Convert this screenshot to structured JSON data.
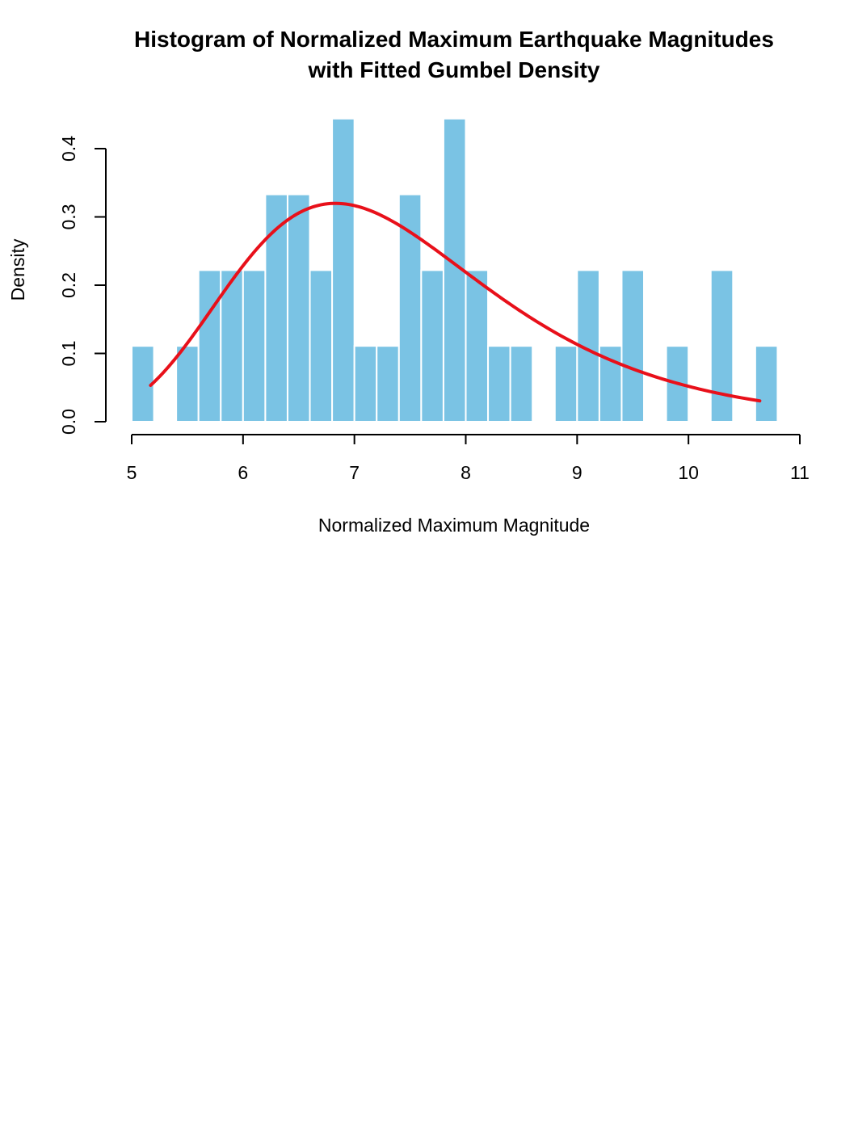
{
  "chart_data": {
    "type": "bar",
    "title_lines": [
      "Histogram of Normalized Maximum Earthquake Magnitudes",
      "with Fitted Gumbel Density"
    ],
    "xlabel": "Normalized Maximum Magnitude",
    "ylabel": "Density",
    "xlim": [
      5,
      11
    ],
    "ylim": [
      0,
      0.4
    ],
    "x_ticks": [
      "5",
      "6",
      "7",
      "8",
      "9",
      "10",
      "11"
    ],
    "x_tick_values": [
      5,
      6,
      7,
      8,
      9,
      10,
      11
    ],
    "y_ticks": [
      "0.0",
      "0.1",
      "0.2",
      "0.3",
      "0.4"
    ],
    "y_tick_values": [
      0,
      0.1,
      0.2,
      0.3,
      0.4
    ],
    "bin_width": 0.2,
    "bins": [
      {
        "x0": 5.0,
        "x1": 5.2,
        "density": 0.111
      },
      {
        "x0": 5.4,
        "x1": 5.6,
        "density": 0.111
      },
      {
        "x0": 5.6,
        "x1": 5.8,
        "density": 0.222
      },
      {
        "x0": 5.8,
        "x1": 6.0,
        "density": 0.222
      },
      {
        "x0": 6.0,
        "x1": 6.2,
        "density": 0.222
      },
      {
        "x0": 6.2,
        "x1": 6.4,
        "density": 0.333
      },
      {
        "x0": 6.4,
        "x1": 6.6,
        "density": 0.333
      },
      {
        "x0": 6.6,
        "x1": 6.8,
        "density": 0.222
      },
      {
        "x0": 6.8,
        "x1": 7.0,
        "density": 0.444
      },
      {
        "x0": 7.0,
        "x1": 7.2,
        "density": 0.111
      },
      {
        "x0": 7.2,
        "x1": 7.4,
        "density": 0.111
      },
      {
        "x0": 7.4,
        "x1": 7.6,
        "density": 0.333
      },
      {
        "x0": 7.6,
        "x1": 7.8,
        "density": 0.222
      },
      {
        "x0": 7.8,
        "x1": 8.0,
        "density": 0.444
      },
      {
        "x0": 8.0,
        "x1": 8.2,
        "density": 0.222
      },
      {
        "x0": 8.2,
        "x1": 8.4,
        "density": 0.111
      },
      {
        "x0": 8.4,
        "x1": 8.6,
        "density": 0.111
      },
      {
        "x0": 8.8,
        "x1": 9.0,
        "density": 0.111
      },
      {
        "x0": 9.0,
        "x1": 9.2,
        "density": 0.222
      },
      {
        "x0": 9.2,
        "x1": 9.4,
        "density": 0.111
      },
      {
        "x0": 9.4,
        "x1": 9.6,
        "density": 0.222
      },
      {
        "x0": 9.8,
        "x1": 10.0,
        "density": 0.111
      },
      {
        "x0": 10.2,
        "x1": 10.4,
        "density": 0.222
      },
      {
        "x0": 10.6,
        "x1": 10.8,
        "density": 0.111
      }
    ],
    "density_curve": {
      "distribution": "Gumbel",
      "location": 6.83,
      "scale": 1.15,
      "x_range": [
        5.17,
        10.64
      ]
    },
    "grid": false,
    "colors": {
      "bar_fill": "#7ac3e4",
      "bar_border": "#ffffff",
      "curve": "#e8101a",
      "axis": "#000000"
    }
  }
}
